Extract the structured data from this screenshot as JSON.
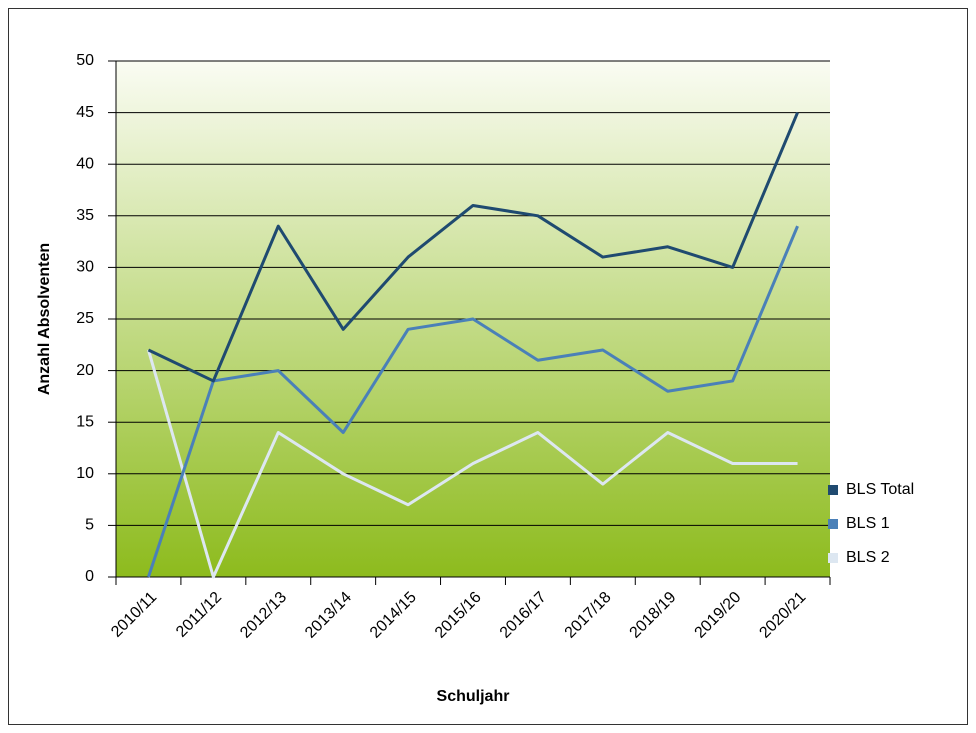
{
  "chart_data": {
    "type": "line",
    "x_label": "Schuljahr",
    "y_label": "Anzahl Absolventen",
    "categories": [
      "2010/11",
      "2011/12",
      "2012/13",
      "2013/14",
      "2014/15",
      "2015/16",
      "2016/17",
      "2017/18",
      "2018/19",
      "2019/20",
      "2020/21"
    ],
    "series": [
      {
        "name": "BLS Total",
        "color": "#1f4a70",
        "values": [
          22,
          19,
          34,
          24,
          31,
          36,
          35,
          31,
          32,
          30,
          45
        ]
      },
      {
        "name": "BLS 1",
        "color": "#4a80b8",
        "values": [
          0,
          19,
          20,
          14,
          24,
          25,
          21,
          22,
          18,
          19,
          34
        ]
      },
      {
        "name": "BLS 2",
        "color": "#dde7f1",
        "values": [
          22,
          0,
          14,
          10,
          7,
          11,
          14,
          9,
          14,
          11,
          11
        ]
      }
    ],
    "ylim": [
      0,
      50
    ],
    "yticks": [
      0,
      5,
      10,
      15,
      20,
      25,
      30,
      35,
      40,
      45,
      50
    ],
    "grid": true,
    "legend": "right"
  }
}
